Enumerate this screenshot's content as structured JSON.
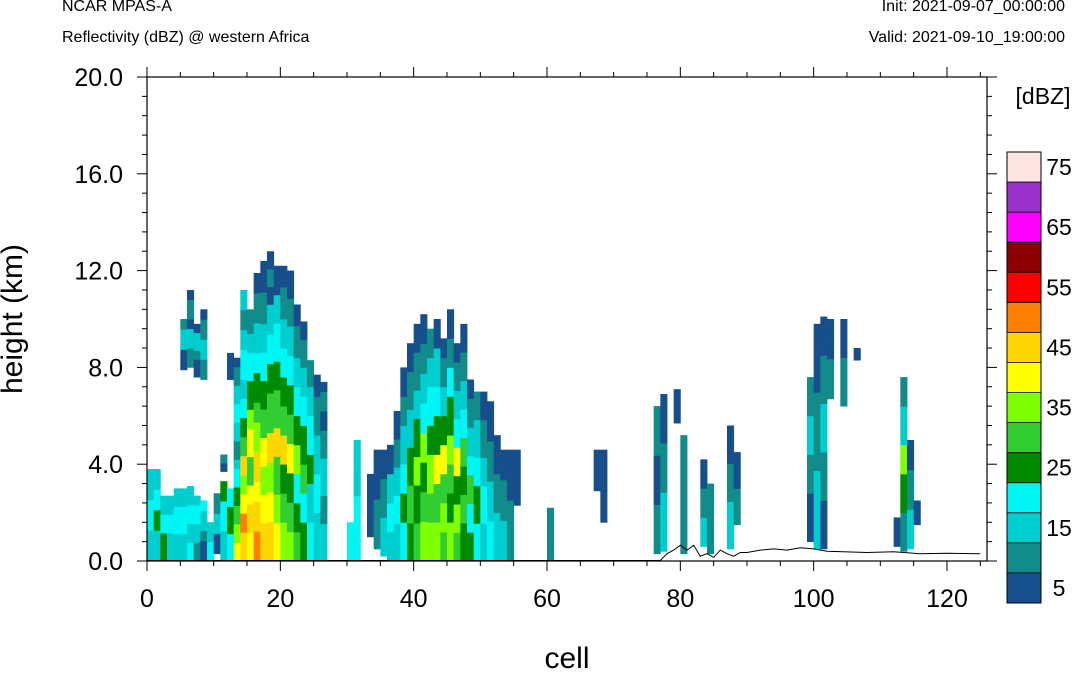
{
  "header": {
    "model": "NCAR MPAS-A",
    "subtitle": "Reflectivity (dBZ) @ western Africa",
    "init": "Init: 2021-09-07_00:00:00",
    "valid": "Valid: 2021-09-10_19:00:00"
  },
  "chart_data": {
    "type": "heatmap",
    "xlabel": "cell",
    "ylabel": "height (km)",
    "xlim": [
      0,
      126
    ],
    "ylim": [
      0,
      20
    ],
    "xticks": [
      "0",
      "20",
      "40",
      "60",
      "80",
      "100",
      "120"
    ],
    "yticks": [
      "0.0",
      "4.0",
      "8.0",
      "12.0",
      "16.0",
      "20.0"
    ],
    "cell_height_km": 0.4,
    "colorbar": {
      "title": "[dBZ]",
      "levels": [
        5,
        10,
        15,
        20,
        25,
        30,
        35,
        40,
        45,
        50,
        55,
        60,
        65,
        70,
        75
      ],
      "colors": [
        "#174f8c",
        "#128b8b",
        "#00cdcd",
        "#00f5f5",
        "#008b00",
        "#32cd32",
        "#7fff00",
        "#ffff00",
        "#ffd700",
        "#ff7f00",
        "#ff0000",
        "#8b0000",
        "#ff00ff",
        "#9932cc",
        "#ffe4e1"
      ],
      "labels": [
        "5",
        "15",
        "25",
        "35",
        "45",
        "55",
        "65",
        "75"
      ]
    },
    "terrain_km": [
      [
        0,
        0.02
      ],
      [
        77,
        0.02
      ],
      [
        78,
        0.3
      ],
      [
        79,
        0.45
      ],
      [
        80,
        0.65
      ],
      [
        81,
        0.45
      ],
      [
        82,
        0.65
      ],
      [
        83,
        0.2
      ],
      [
        84,
        0.3
      ],
      [
        85,
        0.15
      ],
      [
        86,
        0.45
      ],
      [
        87,
        0.3
      ],
      [
        88,
        0.2
      ],
      [
        89,
        0.35
      ],
      [
        90,
        0.35
      ],
      [
        92,
        0.45
      ],
      [
        94,
        0.5
      ],
      [
        96,
        0.45
      ],
      [
        98,
        0.55
      ],
      [
        100,
        0.5
      ],
      [
        102,
        0.4
      ],
      [
        108,
        0.35
      ],
      [
        112,
        0.38
      ],
      [
        116,
        0.3
      ],
      [
        120,
        0.32
      ],
      [
        125,
        0.3
      ]
    ],
    "columns": [
      [
        0,
        0.0,
        3.8,
        [
          15,
          20,
          15
        ]
      ],
      [
        1,
        0.0,
        3.8,
        [
          15,
          25,
          20,
          15
        ]
      ],
      [
        2,
        0.0,
        2.7,
        [
          25,
          20,
          15
        ]
      ],
      [
        3,
        0.0,
        2.7,
        [
          15,
          20,
          15
        ]
      ],
      [
        4,
        0.0,
        3.0,
        [
          15,
          20,
          15
        ]
      ],
      [
        5,
        0.0,
        3.0,
        [
          15,
          20,
          15
        ]
      ],
      [
        5,
        7.9,
        10.0,
        [
          5,
          15,
          10
        ]
      ],
      [
        6,
        0.0,
        3.1,
        [
          20,
          15,
          20,
          15
        ]
      ],
      [
        6,
        8.0,
        11.2,
        [
          10,
          15,
          5,
          10,
          5
        ]
      ],
      [
        7,
        0.0,
        2.7,
        [
          10,
          15,
          20,
          15
        ]
      ],
      [
        7,
        7.6,
        9.8,
        [
          5,
          10,
          15,
          5
        ]
      ],
      [
        8,
        0.0,
        2.5,
        [
          5,
          10,
          15,
          20
        ]
      ],
      [
        8,
        7.5,
        10.4,
        [
          10,
          15,
          10,
          5
        ]
      ],
      [
        9,
        0.0,
        1.6,
        [
          20,
          15
        ]
      ],
      [
        10,
        0.3,
        2.8,
        [
          5,
          15,
          10
        ]
      ],
      [
        11,
        0.0,
        3.3,
        [
          15,
          20,
          25
        ]
      ],
      [
        11,
        3.7,
        4.4,
        [
          5,
          10
        ]
      ],
      [
        12,
        0.0,
        3.0,
        [
          20,
          25,
          20
        ]
      ],
      [
        12,
        7.5,
        8.6,
        [
          5
        ]
      ],
      [
        13,
        0.0,
        4.2,
        [
          40,
          35,
          30,
          25,
          20,
          15
        ]
      ],
      [
        13,
        4.2,
        8.4,
        [
          10,
          15,
          20,
          15,
          10,
          5
        ]
      ],
      [
        14,
        0.0,
        7.5,
        [
          45,
          50,
          40,
          35,
          45,
          30,
          25,
          20,
          15
        ]
      ],
      [
        14,
        7.5,
        11.2,
        [
          20,
          15,
          10,
          15
        ]
      ],
      [
        15,
        0.0,
        9.4,
        [
          40,
          45,
          40,
          30,
          40,
          35,
          25,
          20,
          15
        ]
      ],
      [
        15,
        9.4,
        10.4,
        [
          10
        ]
      ],
      [
        16,
        0.0,
        8.6,
        [
          50,
          45,
          40,
          45,
          35,
          30,
          25,
          20
        ]
      ],
      [
        16,
        8.6,
        11.9,
        [
          15,
          10,
          5
        ]
      ],
      [
        17,
        0.0,
        9.8,
        [
          45,
          40,
          35,
          40,
          30,
          25,
          20,
          15
        ]
      ],
      [
        17,
        9.8,
        12.4,
        [
          10,
          5
        ]
      ],
      [
        18,
        0.0,
        10.6,
        [
          45,
          40,
          35,
          45,
          30,
          25,
          20,
          15
        ]
      ],
      [
        18,
        10.6,
        12.8,
        [
          5,
          10,
          5
        ]
      ],
      [
        19,
        0.0,
        11.0,
        [
          40,
          35,
          30,
          45,
          30,
          25,
          20,
          15
        ]
      ],
      [
        19,
        11.0,
        12.2,
        [
          5
        ]
      ],
      [
        20,
        0.0,
        10.0,
        [
          35,
          30,
          25,
          45,
          30,
          25,
          20,
          15
        ]
      ],
      [
        20,
        10.0,
        12.2,
        [
          10,
          5
        ]
      ],
      [
        21,
        0.0,
        9.7,
        [
          35,
          30,
          25,
          40,
          30,
          25,
          20,
          15
        ]
      ],
      [
        21,
        9.7,
        12.0,
        [
          10,
          5
        ]
      ],
      [
        22,
        0.0,
        8.4,
        [
          30,
          25,
          20,
          35,
          25,
          20,
          15
        ]
      ],
      [
        22,
        8.4,
        10.6,
        [
          10,
          5
        ]
      ],
      [
        23,
        0.0,
        8.0,
        [
          25,
          20,
          30,
          25,
          20,
          15
        ]
      ],
      [
        23,
        8.0,
        9.9,
        [
          10,
          5
        ]
      ],
      [
        24,
        0.0,
        7.2,
        [
          20,
          15,
          25,
          20,
          15
        ]
      ],
      [
        24,
        7.2,
        8.3,
        [
          10
        ]
      ],
      [
        25,
        0.0,
        6.8,
        [
          15,
          20,
          15,
          10
        ]
      ],
      [
        25,
        6.8,
        7.7,
        [
          5
        ]
      ],
      [
        26,
        0.0,
        5.4,
        [
          15,
          10,
          15,
          10
        ]
      ],
      [
        26,
        5.4,
        7.4,
        [
          5,
          10,
          5
        ]
      ],
      [
        30,
        0.0,
        1.6,
        [
          20
        ]
      ],
      [
        31,
        0.0,
        5.0,
        [
          20,
          15
        ]
      ],
      [
        33,
        1.0,
        3.6,
        [
          5
        ]
      ],
      [
        34,
        0.5,
        4.6,
        [
          10,
          5
        ]
      ],
      [
        35,
        0.2,
        4.6,
        [
          15,
          10,
          5
        ]
      ],
      [
        36,
        0.0,
        4.8,
        [
          15,
          20,
          15,
          5
        ]
      ],
      [
        37,
        0.0,
        6.2,
        [
          15,
          20,
          15,
          10,
          5
        ]
      ],
      [
        38,
        0.0,
        8.0,
        [
          20,
          25,
          20,
          15,
          10,
          5
        ]
      ],
      [
        39,
        0.0,
        9.0,
        [
          25,
          30,
          25,
          15,
          10,
          5
        ]
      ],
      [
        40,
        0.0,
        9.8,
        [
          30,
          25,
          35,
          25,
          15,
          10,
          5
        ]
      ],
      [
        41,
        0.0,
        10.2,
        [
          35,
          30,
          25,
          35,
          20,
          15,
          10,
          5
        ]
      ],
      [
        42,
        0.0,
        9.6,
        [
          35,
          30,
          35,
          25,
          20,
          15,
          10
        ]
      ],
      [
        43,
        0.0,
        10.0,
        [
          35,
          30,
          40,
          25,
          20,
          15,
          5
        ]
      ],
      [
        44,
        0.0,
        9.2,
        [
          30,
          35,
          30,
          40,
          25,
          15,
          10,
          5
        ]
      ],
      [
        45,
        0.0,
        10.4,
        [
          35,
          25,
          30,
          35,
          25,
          20,
          10,
          5
        ]
      ],
      [
        46,
        0.0,
        9.0,
        [
          30,
          35,
          25,
          40,
          20,
          15,
          10,
          5
        ]
      ],
      [
        47,
        0.0,
        9.8,
        [
          25,
          30,
          25,
          30,
          20,
          15,
          10,
          5
        ]
      ],
      [
        48,
        0.0,
        7.5,
        [
          25,
          20,
          30,
          20,
          15,
          10,
          5
        ]
      ],
      [
        49,
        0.0,
        7.0,
        [
          20,
          25,
          20,
          15,
          10
        ]
      ],
      [
        50,
        0.0,
        7.0,
        [
          15,
          20,
          15,
          10,
          5
        ]
      ],
      [
        51,
        0.0,
        6.6,
        [
          20,
          15,
          10,
          5
        ]
      ],
      [
        52,
        0.0,
        5.2,
        [
          15,
          10,
          5
        ]
      ],
      [
        53,
        0.0,
        4.6,
        [
          15,
          10,
          5
        ]
      ],
      [
        54,
        0.0,
        4.6,
        [
          10,
          5
        ]
      ],
      [
        55,
        2.3,
        4.6,
        [
          5
        ]
      ],
      [
        60,
        0.0,
        2.2,
        [
          10
        ]
      ],
      [
        67,
        2.9,
        4.6,
        [
          5
        ]
      ],
      [
        68,
        1.6,
        4.6,
        [
          5
        ]
      ],
      [
        76,
        0.3,
        6.4,
        [
          10,
          5,
          10
        ]
      ],
      [
        77,
        0.4,
        6.9,
        [
          15,
          10,
          5
        ]
      ],
      [
        79,
        5.7,
        7.1,
        [
          5
        ]
      ],
      [
        80,
        0.3,
        5.2,
        [
          10
        ]
      ],
      [
        83,
        0.6,
        4.2,
        [
          15,
          10,
          5
        ]
      ],
      [
        84,
        0.3,
        3.2,
        [
          10
        ]
      ],
      [
        87,
        0.5,
        5.6,
        [
          15,
          10,
          5
        ]
      ],
      [
        88,
        1.5,
        4.5,
        [
          10,
          5
        ]
      ],
      [
        99,
        0.8,
        7.6,
        [
          5,
          10,
          15,
          10
        ]
      ],
      [
        100,
        0.5,
        9.8,
        [
          15,
          10,
          5
        ]
      ],
      [
        101,
        0.5,
        10.1,
        [
          5,
          10,
          15,
          10,
          5
        ]
      ],
      [
        102,
        6.7,
        10.0,
        [
          10,
          5
        ]
      ],
      [
        104,
        6.4,
        10.0,
        [
          10,
          5
        ]
      ],
      [
        106,
        8.3,
        8.8,
        [
          5
        ]
      ],
      [
        112,
        0.6,
        1.8,
        [
          5
        ]
      ],
      [
        113,
        0.4,
        7.6,
        [
          10,
          25,
          35,
          15,
          10
        ]
      ],
      [
        114,
        0.5,
        5.0,
        [
          15,
          10,
          5
        ]
      ],
      [
        115,
        1.5,
        2.5,
        [
          5
        ]
      ]
    ]
  }
}
